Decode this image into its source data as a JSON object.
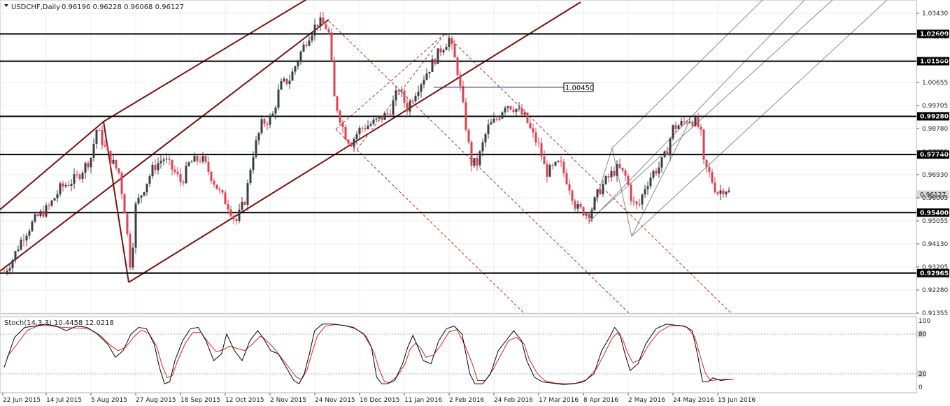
{
  "header": {
    "symbol": "USDCHF,Daily",
    "ohlc": "0.96196 0.96228 0.96068 0.96127"
  },
  "stoch": {
    "label": "Stoch(14,3,3) 10.4458 12.0218",
    "y_ticks": [
      "100",
      "80",
      "20",
      "0"
    ]
  },
  "colors": {
    "bull": "#3a3f45",
    "bear": "#e04050",
    "level_line": "#000000",
    "pitchfork_main": "#7a1010",
    "pitchfork_dashed": "#b83040",
    "pitchfork_thin": "#8a8a8a",
    "stoch_k": "#000000",
    "stoch_d": "#e02020",
    "grid": "#ececec"
  },
  "chart_data": [
    {
      "type": "candlestick",
      "title": "USDCHF,Daily",
      "ylim": [
        0.912,
        1.037
      ],
      "y_ticks": [
        "1.03430",
        "1.02505",
        "1.01580",
        "1.00655",
        "0.99705",
        "0.98780",
        "0.97855",
        "0.96930",
        "0.96005",
        "0.95055",
        "0.94130",
        "0.93205",
        "0.92280",
        "0.91355"
      ],
      "x_ticks": [
        "22 Jun 2015",
        "14 Jul 2015",
        "5 Aug 2015",
        "27 Aug 2015",
        "18 Sep 2015",
        "12 Oct 2015",
        "2 Nov 2015",
        "24 Nov 2015",
        "16 Dec 2015",
        "11 Jan 2016",
        "2 Feb 2016",
        "24 Feb 2016",
        "17 Mar 2016",
        "8 Apr 2016",
        "2 May 2016",
        "24 May 2016",
        "15 Jun 2016"
      ],
      "levels": [
        {
          "label": "1.02600",
          "value": 1.026
        },
        {
          "label": "1.01500",
          "value": 1.015
        },
        {
          "label": "0.99280",
          "value": 0.9928
        },
        {
          "label": "0.97740",
          "value": 0.9774
        },
        {
          "label": "0.95400",
          "value": 0.954
        },
        {
          "label": "0.92965",
          "value": 0.92965
        }
      ],
      "current_price": {
        "label": "0.96127",
        "value": 0.96127
      },
      "annotation": {
        "label": "1.00450",
        "value": 1.0045
      },
      "close_path": [
        {
          "date": "2015-06-22",
          "close": 0.93
        },
        {
          "date": "2015-06-26",
          "close": 0.935
        },
        {
          "date": "2015-07-01",
          "close": 0.944
        },
        {
          "date": "2015-07-08",
          "close": 0.952
        },
        {
          "date": "2015-07-14",
          "close": 0.956
        },
        {
          "date": "2015-07-20",
          "close": 0.964
        },
        {
          "date": "2015-07-28",
          "close": 0.968
        },
        {
          "date": "2015-08-04",
          "close": 0.976
        },
        {
          "date": "2015-08-07",
          "close": 0.988
        },
        {
          "date": "2015-08-12",
          "close": 0.978
        },
        {
          "date": "2015-08-18",
          "close": 0.97
        },
        {
          "date": "2015-08-21",
          "close": 0.954
        },
        {
          "date": "2015-08-24",
          "close": 0.93
        },
        {
          "date": "2015-08-26",
          "close": 0.956
        },
        {
          "date": "2015-08-31",
          "close": 0.965
        },
        {
          "date": "2015-09-04",
          "close": 0.972
        },
        {
          "date": "2015-09-09",
          "close": 0.976
        },
        {
          "date": "2015-09-15",
          "close": 0.97
        },
        {
          "date": "2015-09-18",
          "close": 0.966
        },
        {
          "date": "2015-09-22",
          "close": 0.974
        },
        {
          "date": "2015-09-28",
          "close": 0.976
        },
        {
          "date": "2015-10-02",
          "close": 0.97
        },
        {
          "date": "2015-10-07",
          "close": 0.962
        },
        {
          "date": "2015-10-12",
          "close": 0.956
        },
        {
          "date": "2015-10-15",
          "close": 0.95
        },
        {
          "date": "2015-10-20",
          "close": 0.96
        },
        {
          "date": "2015-10-23",
          "close": 0.976
        },
        {
          "date": "2015-10-28",
          "close": 0.99
        },
        {
          "date": "2015-11-02",
          "close": 0.992
        },
        {
          "date": "2015-11-06",
          "close": 1.005
        },
        {
          "date": "2015-11-11",
          "close": 1.008
        },
        {
          "date": "2015-11-16",
          "close": 1.018
        },
        {
          "date": "2015-11-20",
          "close": 1.025
        },
        {
          "date": "2015-11-25",
          "close": 1.031
        },
        {
          "date": "2015-11-30",
          "close": 1.028
        },
        {
          "date": "2015-12-03",
          "close": 1.0
        },
        {
          "date": "2015-12-08",
          "close": 0.986
        },
        {
          "date": "2015-12-11",
          "close": 0.982
        },
        {
          "date": "2015-12-16",
          "close": 0.988
        },
        {
          "date": "2015-12-22",
          "close": 0.99
        },
        {
          "date": "2015-12-30",
          "close": 0.994
        },
        {
          "date": "2016-01-04",
          "close": 1.004
        },
        {
          "date": "2016-01-08",
          "close": 0.996
        },
        {
          "date": "2016-01-13",
          "close": 1.004
        },
        {
          "date": "2016-01-19",
          "close": 1.012
        },
        {
          "date": "2016-01-25",
          "close": 1.02
        },
        {
          "date": "2016-01-29",
          "close": 1.024
        },
        {
          "date": "2016-02-02",
          "close": 1.012
        },
        {
          "date": "2016-02-05",
          "close": 0.996
        },
        {
          "date": "2016-02-09",
          "close": 0.974
        },
        {
          "date": "2016-02-12",
          "close": 0.974
        },
        {
          "date": "2016-02-17",
          "close": 0.988
        },
        {
          "date": "2016-02-22",
          "close": 0.992
        },
        {
          "date": "2016-02-26",
          "close": 0.998
        },
        {
          "date": "2016-03-02",
          "close": 0.996
        },
        {
          "date": "2016-03-07",
          "close": 0.992
        },
        {
          "date": "2016-03-10",
          "close": 0.986
        },
        {
          "date": "2016-03-14",
          "close": 0.98
        },
        {
          "date": "2016-03-17",
          "close": 0.97
        },
        {
          "date": "2016-03-21",
          "close": 0.972
        },
        {
          "date": "2016-03-24",
          "close": 0.974
        },
        {
          "date": "2016-03-29",
          "close": 0.964
        },
        {
          "date": "2016-04-01",
          "close": 0.956
        },
        {
          "date": "2016-04-06",
          "close": 0.954
        },
        {
          "date": "2016-04-08",
          "close": 0.954
        },
        {
          "date": "2016-04-12",
          "close": 0.962
        },
        {
          "date": "2016-04-15",
          "close": 0.966
        },
        {
          "date": "2016-04-19",
          "close": 0.97
        },
        {
          "date": "2016-04-22",
          "close": 0.972
        },
        {
          "date": "2016-04-26",
          "close": 0.968
        },
        {
          "date": "2016-04-29",
          "close": 0.958
        },
        {
          "date": "2016-05-02",
          "close": 0.956
        },
        {
          "date": "2016-05-05",
          "close": 0.964
        },
        {
          "date": "2016-05-09",
          "close": 0.97
        },
        {
          "date": "2016-05-12",
          "close": 0.972
        },
        {
          "date": "2016-05-16",
          "close": 0.978
        },
        {
          "date": "2016-05-19",
          "close": 0.988
        },
        {
          "date": "2016-05-24",
          "close": 0.99
        },
        {
          "date": "2016-05-27",
          "close": 0.992
        },
        {
          "date": "2016-05-31",
          "close": 0.99
        },
        {
          "date": "2016-06-02",
          "close": 0.986
        },
        {
          "date": "2016-06-03",
          "close": 0.974
        },
        {
          "date": "2016-06-06",
          "close": 0.97
        },
        {
          "date": "2016-06-08",
          "close": 0.966
        },
        {
          "date": "2016-06-10",
          "close": 0.962
        },
        {
          "date": "2016-06-14",
          "close": 0.964
        },
        {
          "date": "2016-06-17",
          "close": 0.9613
        }
      ]
    },
    {
      "type": "line",
      "title": "Stoch(14,3,3) 10.4458 12.0218",
      "ylim": [
        0,
        100
      ],
      "y_ticks": [
        100,
        80,
        20,
        0
      ],
      "series": [
        {
          "name": "Stoch(14,3,3) 10.4458 12.0218",
          "values": [
            [
              0,
              30
            ],
            [
              4,
              75
            ],
            [
              8,
              90
            ],
            [
              12,
              92
            ],
            [
              16,
              95
            ],
            [
              20,
              92
            ],
            [
              24,
              85
            ],
            [
              28,
              92
            ],
            [
              32,
              90
            ],
            [
              36,
              80
            ],
            [
              40,
              65
            ],
            [
              43,
              45
            ],
            [
              46,
              55
            ],
            [
              49,
              80
            ],
            [
              52,
              90
            ],
            [
              55,
              88
            ],
            [
              58,
              65
            ],
            [
              60,
              30
            ],
            [
              62,
              5
            ],
            [
              64,
              8
            ],
            [
              66,
              40
            ],
            [
              69,
              70
            ],
            [
              72,
              88
            ],
            [
              75,
              90
            ],
            [
              78,
              70
            ],
            [
              81,
              40
            ],
            [
              84,
              50
            ],
            [
              86,
              80
            ],
            [
              89,
              55
            ],
            [
              92,
              40
            ],
            [
              95,
              70
            ],
            [
              98,
              85
            ],
            [
              100,
              75
            ],
            [
              103,
              55
            ],
            [
              106,
              50
            ],
            [
              109,
              30
            ],
            [
              112,
              10
            ],
            [
              114,
              5
            ],
            [
              116,
              20
            ],
            [
              118,
              50
            ],
            [
              120,
              85
            ],
            [
              123,
              95
            ],
            [
              127,
              95
            ],
            [
              131,
              93
            ],
            [
              135,
              90
            ],
            [
              139,
              80
            ],
            [
              142,
              60
            ],
            [
              144,
              15
            ],
            [
              146,
              5
            ],
            [
              148,
              5
            ],
            [
              151,
              10
            ],
            [
              154,
              35
            ],
            [
              156,
              60
            ],
            [
              158,
              78
            ],
            [
              160,
              60
            ],
            [
              162,
              40
            ],
            [
              165,
              35
            ],
            [
              168,
              70
            ],
            [
              171,
              88
            ],
            [
              174,
              92
            ],
            [
              177,
              80
            ],
            [
              180,
              20
            ],
            [
              182,
              5
            ],
            [
              185,
              5
            ],
            [
              188,
              20
            ],
            [
              191,
              55
            ],
            [
              194,
              70
            ],
            [
              197,
              85
            ],
            [
              200,
              70
            ],
            [
              202,
              40
            ],
            [
              205,
              15
            ],
            [
              208,
              8
            ],
            [
              212,
              6
            ],
            [
              216,
              4
            ],
            [
              220,
              5
            ],
            [
              224,
              8
            ],
            [
              228,
              20
            ],
            [
              231,
              55
            ],
            [
              234,
              75
            ],
            [
              236,
              90
            ],
            [
              238,
              80
            ],
            [
              240,
              50
            ],
            [
              242,
              25
            ],
            [
              245,
              35
            ],
            [
              248,
              65
            ],
            [
              252,
              88
            ],
            [
              256,
              95
            ],
            [
              260,
              93
            ],
            [
              263,
              92
            ],
            [
              266,
              85
            ],
            [
              268,
              50
            ],
            [
              270,
              8
            ],
            [
              272,
              8
            ],
            [
              274,
              14
            ],
            [
              277,
              10
            ],
            [
              281,
              12
            ]
          ]
        }
      ]
    }
  ]
}
